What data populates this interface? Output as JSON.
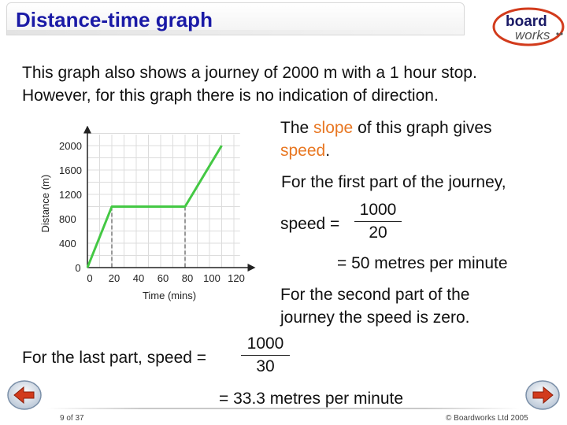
{
  "slide": {
    "title": "Distance-time graph",
    "intro_line1": "This graph also shows a journey of 2000 m with a 1 hour stop.",
    "intro_line2": "However, for this graph there is no indication of direction.",
    "slope_part1": "The ",
    "slope_word": "slope",
    "slope_part2": " of this graph gives",
    "speed_word": "speed",
    "speed_period": ".",
    "first_part": "For the first part of the journey,",
    "speed_label": "speed =",
    "first_numerator": "1000",
    "first_denominator": "20",
    "first_result": "= 50 metres per minute",
    "second_line1": "For the second part of the",
    "second_line2": "journey the speed is zero.",
    "last_label": "For the last part, speed =",
    "last_numerator": "1000",
    "last_denominator": "30",
    "last_result": "= 33.3 metres per minute"
  },
  "logo": {
    "line1": "board",
    "line2": "works"
  },
  "footer": {
    "page": "9 of 37",
    "copyright": "© Boardworks Ltd 2005"
  },
  "nav": {
    "prev_icon": "arrow-left-icon",
    "next_icon": "arrow-right-icon"
  },
  "colors": {
    "title": "#1a1aa6",
    "accent": "#e87722",
    "line": "#44c844"
  },
  "chart_data": {
    "type": "line",
    "title": "",
    "xlabel": "Time (mins)",
    "ylabel": "Distance (m)",
    "x_ticks": [
      0,
      20,
      40,
      60,
      80,
      100,
      120
    ],
    "y_ticks": [
      0,
      400,
      800,
      1200,
      1600,
      2000
    ],
    "x_tick_labels": [
      "0",
      "20",
      "40",
      "60",
      "80",
      "100",
      "120"
    ],
    "y_tick_labels": [
      "0",
      "400",
      "800",
      "1200",
      "1600",
      "2000"
    ],
    "xlim": [
      0,
      130
    ],
    "ylim": [
      0,
      2200
    ],
    "grid": true,
    "series": [
      {
        "x": [
          0,
          20,
          80,
          110
        ],
        "y": [
          0,
          1000,
          1000,
          2000
        ]
      }
    ]
  }
}
